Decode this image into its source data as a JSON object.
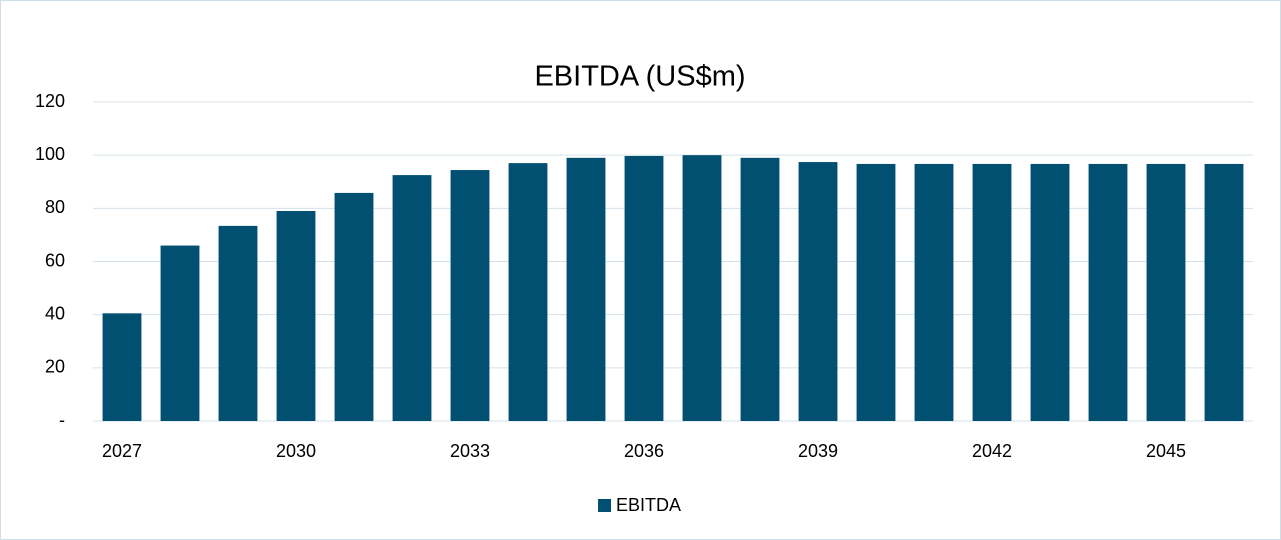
{
  "chart_data": {
    "type": "bar",
    "title": "EBITDA (US$m)",
    "categories": [
      "2027",
      null,
      null,
      "2030",
      null,
      null,
      "2033",
      null,
      null,
      "2036",
      null,
      null,
      "2039",
      null,
      null,
      "2042",
      null,
      null,
      "2045",
      null
    ],
    "series": [
      {
        "name": "EBITDA",
        "color": "#014f71",
        "values": [
          40.5,
          66,
          73.4,
          79,
          85.8,
          92.5,
          94.4,
          97,
          99,
          99.7,
          100,
          99,
          97.4,
          96.7,
          96.7,
          96.7,
          96.7,
          96.7,
          96.7,
          96.7
        ]
      }
    ],
    "ylim": [
      0,
      120
    ],
    "yticks": [
      {
        "value": 0,
        "label": "-"
      },
      20,
      40,
      60,
      80,
      100,
      120
    ],
    "grid": true,
    "legend": "bottom"
  }
}
